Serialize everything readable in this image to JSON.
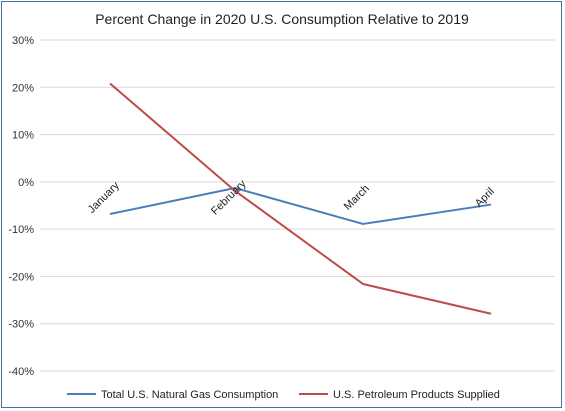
{
  "chart_data": {
    "type": "line",
    "title": "Percent Change in 2020 U.S. Consumption Relative to 2019",
    "xlabel": "",
    "ylabel": "",
    "categories": [
      "January",
      "February",
      "March",
      "April"
    ],
    "ylim": [
      -40,
      30
    ],
    "y_ticks": [
      "30%",
      "20%",
      "10%",
      "0%",
      "-10%",
      "-20%",
      "-30%",
      "-40%"
    ],
    "y_tick_values": [
      30,
      20,
      10,
      0,
      -10,
      -20,
      -30,
      -40
    ],
    "grid": true,
    "legend_position": "bottom",
    "series": [
      {
        "name": "Total U.S. Natural Gas Consumption",
        "values": [
          -6.8,
          -1.3,
          -8.9,
          -4.8
        ],
        "color": "#4a7ebb"
      },
      {
        "name": "U.S. Petroleum Products Supplied",
        "values": [
          20.8,
          -1.9,
          -21.6,
          -27.9
        ],
        "color": "#be4b48"
      }
    ]
  }
}
